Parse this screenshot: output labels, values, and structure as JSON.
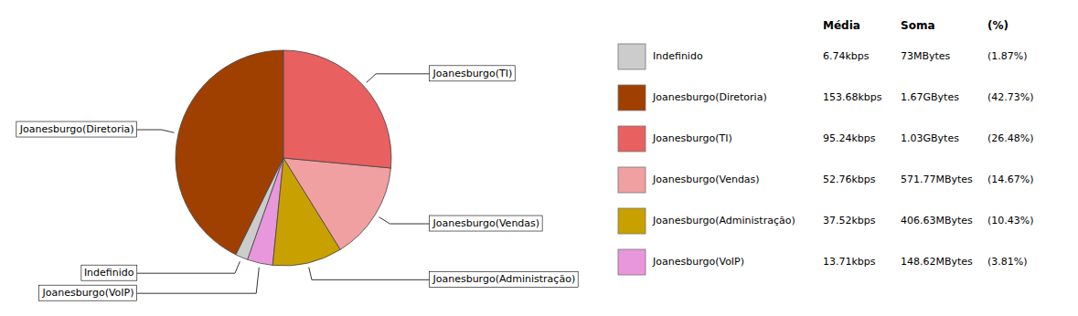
{
  "chart_data": {
    "type": "pie",
    "categories": [
      "Joanesburgo(Diretoria)",
      "Indefinido",
      "Joanesburgo(VoIP)",
      "Joanesburgo(Administração)",
      "Joanesburgo(Vendas)",
      "Joanesburgo(TI)"
    ],
    "values": [
      42.73,
      1.87,
      3.81,
      10.43,
      14.67,
      26.48
    ],
    "colors": [
      "#A04000",
      "#CCCCCC",
      "#E897DC",
      "#C8A000",
      "#F0A0A0",
      "#E86060"
    ],
    "table": {
      "columns": [
        "Média",
        "Soma",
        "(%)"
      ],
      "rows": [
        {
          "label": "Indefinido",
          "color": "#CCCCCC",
          "media": "6.74kbps",
          "soma": "73MBytes",
          "pct": "(1.87%)"
        },
        {
          "label": "Joanesburgo(Diretoria)",
          "color": "#A04000",
          "media": "153.68kbps",
          "soma": "1.67GBytes",
          "pct": "(42.73%)"
        },
        {
          "label": "Joanesburgo(TI)",
          "color": "#E86060",
          "media": "95.24kbps",
          "soma": "1.03GBytes",
          "pct": "(26.48%)"
        },
        {
          "label": "Joanesburgo(Vendas)",
          "color": "#F0A0A0",
          "media": "52.76kbps",
          "soma": "571.77MBytes",
          "pct": "(14.67%)"
        },
        {
          "label": "Joanesburgo(Administração)",
          "color": "#C8A000",
          "media": "37.52kbps",
          "soma": "406.63MBytes",
          "pct": "(10.43%)"
        },
        {
          "label": "Joanesburgo(VoIP)",
          "color": "#E897DC",
          "media": "13.71kbps",
          "soma": "148.62MBytes",
          "pct": "(3.81%)"
        }
      ]
    }
  }
}
